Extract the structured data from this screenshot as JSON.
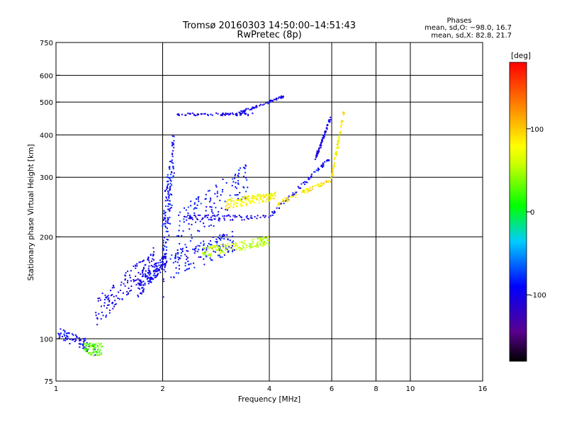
{
  "chart_data": {
    "type": "scatter",
    "title": "Tromsø 20160303 14:50:00–14:51:43",
    "subtitle": "RwPretec (8p)",
    "stats": {
      "heading": "Phases",
      "line_o": "mean, sd,O: −98.0, 16.7",
      "line_x": "mean, sd,X: 82.8, 21.7"
    },
    "xlabel": "Frequency [MHz]",
    "ylabel": "Stationary phase Virtual Height [km]",
    "x_scale": "log",
    "y_scale": "log",
    "xlim": [
      1,
      16
    ],
    "ylim": [
      75,
      750
    ],
    "x_ticks": [
      1,
      2,
      4,
      6,
      8,
      10,
      16
    ],
    "x_tick_labels": [
      "1",
      "2",
      "4",
      "6",
      "8",
      "10",
      "16"
    ],
    "y_ticks": [
      75,
      100,
      200,
      300,
      400,
      500,
      600,
      750
    ],
    "y_tick_labels": [
      "75",
      "100",
      "200",
      "300",
      "400",
      "500",
      "600",
      "750"
    ],
    "grid_x": [
      2,
      4,
      6,
      8,
      10
    ],
    "grid_y": [
      100,
      200,
      300,
      400,
      500,
      600
    ],
    "grid": true,
    "colorbar": {
      "label": "[deg]",
      "range": [
        -180,
        180
      ],
      "ticks": [
        100,
        0,
        -100
      ],
      "tick_labels": [
        "100",
        "0",
        "-100"
      ],
      "colormap": "rainbow (black-purple-blue-cyan-green-yellow-red)"
    },
    "series": [
      {
        "segments": [
          {
            "x": [
              1.0,
              1.3
            ],
            "y": [
              105,
              93
            ],
            "phase": -95,
            "kind": "line"
          },
          {
            "x": [
              1.3,
              1.9
            ],
            "y": [
              120,
              175
            ],
            "phase": -100,
            "kind": "band",
            "halfwidth": 12
          },
          {
            "x": [
              1.7,
              2.05
            ],
            "y": [
              140,
              172
            ],
            "phase": -98,
            "kind": "band",
            "halfwidth": 8
          },
          {
            "x": [
              2.0,
              2.15
            ],
            "y": [
              180,
              360
            ],
            "phase": -90,
            "kind": "band",
            "halfwidth": 60
          },
          {
            "x": [
              2.1,
              3.2
            ],
            "y": [
              165,
              195
            ],
            "phase": -92,
            "kind": "band",
            "halfwidth": 15
          },
          {
            "x": [
              2.2,
              3.5
            ],
            "y": [
              205,
              300
            ],
            "phase": -88,
            "kind": "band",
            "halfwidth": 35
          },
          {
            "x": [
              2.3,
              4.0
            ],
            "y": [
              228,
              228
            ],
            "phase": -105,
            "kind": "line"
          },
          {
            "x": [
              4.0,
              5.9
            ],
            "y": [
              230,
              340
            ],
            "phase": -95,
            "kind": "line"
          },
          {
            "x": [
              5.4,
              5.95
            ],
            "y": [
              340,
              450
            ],
            "phase": -100,
            "kind": "line"
          },
          {
            "x": [
              2.2,
              3.6
            ],
            "y": [
              460,
              460
            ],
            "phase": -105,
            "kind": "line"
          },
          {
            "x": [
              3.2,
              4.4
            ],
            "y": [
              460,
              520
            ],
            "phase": -95,
            "kind": "line"
          }
        ]
      },
      {
        "segments": [
          {
            "x": [
              3.0,
              4.2
            ],
            "y": [
              250,
              265
            ],
            "phase": 80,
            "kind": "band",
            "halfwidth": 8
          },
          {
            "x": [
              4.2,
              6.0
            ],
            "y": [
              250,
              295
            ],
            "phase": 90,
            "kind": "line"
          },
          {
            "x": [
              6.0,
              6.5
            ],
            "y": [
              300,
              470
            ],
            "phase": 85,
            "kind": "line"
          },
          {
            "x": [
              2.6,
              4.0
            ],
            "y": [
              180,
              195
            ],
            "phase": 55,
            "kind": "band",
            "halfwidth": 6
          },
          {
            "x": [
              1.2,
              1.35
            ],
            "y": [
              93,
              93
            ],
            "phase": 30,
            "kind": "line"
          }
        ]
      }
    ],
    "colors": {
      "grid": "#000000",
      "background": "#ffffff"
    }
  }
}
